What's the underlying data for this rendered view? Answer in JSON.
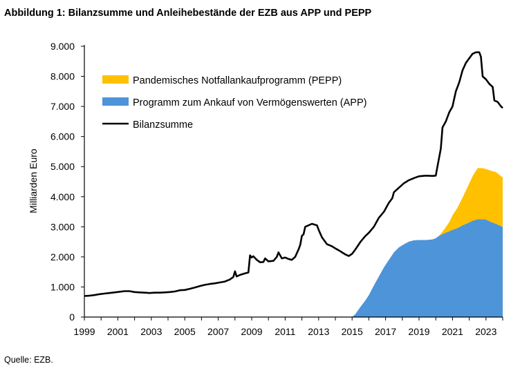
{
  "figure": {
    "title": "Abbildung 1: Bilanzsumme und Anleihebestände der EZB aus APP und PEPP",
    "source": "Quelle: EZB."
  },
  "chart_data": {
    "type": "area",
    "ylabel": "Milliarden Euro",
    "xlabel": "",
    "xlim": [
      1999,
      2024
    ],
    "ylim": [
      0,
      9000
    ],
    "y_ticks": [
      "0",
      "1.000",
      "2.000",
      "3.000",
      "4.000",
      "5.000",
      "6.000",
      "7.000",
      "8.000",
      "9.000"
    ],
    "y_tick_values": [
      0,
      1000,
      2000,
      3000,
      4000,
      5000,
      6000,
      7000,
      8000,
      9000
    ],
    "x_ticks": [
      "1999",
      "2001",
      "2003",
      "2005",
      "2007",
      "2009",
      "2011",
      "2013",
      "2015",
      "2017",
      "2019",
      "2021",
      "2023"
    ],
    "x_tick_values": [
      1999,
      2001,
      2003,
      2005,
      2007,
      2009,
      2011,
      2013,
      2015,
      2017,
      2019,
      2021,
      2023
    ],
    "legend_position": "top-left",
    "grid": false,
    "series": [
      {
        "name": "Pandemisches Notfallankaufprogramm (PEPP)",
        "kind": "stacked-area",
        "color": "#FFC000",
        "points": [
          [
            2020.2,
            0
          ],
          [
            2020.5,
            130
          ],
          [
            2020.8,
            300
          ],
          [
            2021.0,
            480
          ],
          [
            2021.3,
            680
          ],
          [
            2021.6,
            920
          ],
          [
            2021.9,
            1200
          ],
          [
            2022.2,
            1480
          ],
          [
            2022.5,
            1700
          ],
          [
            2022.8,
            1700
          ],
          [
            2023.0,
            1680
          ],
          [
            2023.3,
            1700
          ],
          [
            2023.6,
            1720
          ],
          [
            2023.9,
            1660
          ],
          [
            2024.0,
            1650
          ]
        ]
      },
      {
        "name": "Programm zum Ankauf von Vermögenswerten (APP)",
        "kind": "area",
        "color": "#4E94D8",
        "points": [
          [
            2015.0,
            0
          ],
          [
            2015.2,
            100
          ],
          [
            2015.5,
            340
          ],
          [
            2015.8,
            560
          ],
          [
            2016.0,
            730
          ],
          [
            2016.3,
            1050
          ],
          [
            2016.6,
            1350
          ],
          [
            2016.9,
            1650
          ],
          [
            2017.2,
            1900
          ],
          [
            2017.5,
            2150
          ],
          [
            2017.8,
            2320
          ],
          [
            2018.1,
            2420
          ],
          [
            2018.4,
            2510
          ],
          [
            2018.7,
            2550
          ],
          [
            2019.0,
            2560
          ],
          [
            2019.4,
            2560
          ],
          [
            2019.8,
            2580
          ],
          [
            2020.0,
            2620
          ],
          [
            2020.2,
            2700
          ],
          [
            2020.5,
            2780
          ],
          [
            2020.8,
            2850
          ],
          [
            2021.0,
            2900
          ],
          [
            2021.3,
            2960
          ],
          [
            2021.6,
            3050
          ],
          [
            2021.9,
            3120
          ],
          [
            2022.2,
            3200
          ],
          [
            2022.5,
            3250
          ],
          [
            2022.8,
            3250
          ],
          [
            2023.0,
            3240
          ],
          [
            2023.3,
            3160
          ],
          [
            2023.6,
            3100
          ],
          [
            2023.9,
            3020
          ],
          [
            2024.0,
            3000
          ]
        ]
      },
      {
        "name": "Bilanzsumme",
        "kind": "line",
        "color": "#000000",
        "points": [
          [
            1999.0,
            700
          ],
          [
            1999.3,
            710
          ],
          [
            1999.6,
            730
          ],
          [
            1999.9,
            760
          ],
          [
            2000.2,
            780
          ],
          [
            2000.5,
            800
          ],
          [
            2000.8,
            820
          ],
          [
            2001.1,
            840
          ],
          [
            2001.4,
            860
          ],
          [
            2001.7,
            860
          ],
          [
            2002.0,
            830
          ],
          [
            2002.3,
            820
          ],
          [
            2002.6,
            810
          ],
          [
            2002.9,
            800
          ],
          [
            2003.2,
            810
          ],
          [
            2003.5,
            810
          ],
          [
            2003.8,
            820
          ],
          [
            2004.1,
            830
          ],
          [
            2004.4,
            850
          ],
          [
            2004.7,
            890
          ],
          [
            2005.0,
            900
          ],
          [
            2005.3,
            940
          ],
          [
            2005.6,
            980
          ],
          [
            2005.9,
            1030
          ],
          [
            2006.2,
            1070
          ],
          [
            2006.5,
            1100
          ],
          [
            2006.8,
            1120
          ],
          [
            2007.1,
            1150
          ],
          [
            2007.4,
            1180
          ],
          [
            2007.7,
            1250
          ],
          [
            2007.9,
            1330
          ],
          [
            2008.0,
            1520
          ],
          [
            2008.1,
            1350
          ],
          [
            2008.3,
            1400
          ],
          [
            2008.6,
            1450
          ],
          [
            2008.8,
            1480
          ],
          [
            2008.9,
            2050
          ],
          [
            2009.0,
            1980
          ],
          [
            2009.1,
            2020
          ],
          [
            2009.3,
            1900
          ],
          [
            2009.5,
            1820
          ],
          [
            2009.7,
            1830
          ],
          [
            2009.8,
            1950
          ],
          [
            2010.0,
            1850
          ],
          [
            2010.3,
            1870
          ],
          [
            2010.5,
            2000
          ],
          [
            2010.6,
            2150
          ],
          [
            2010.8,
            1950
          ],
          [
            2011.0,
            1980
          ],
          [
            2011.2,
            1930
          ],
          [
            2011.4,
            1900
          ],
          [
            2011.6,
            2000
          ],
          [
            2011.8,
            2250
          ],
          [
            2011.9,
            2400
          ],
          [
            2012.0,
            2700
          ],
          [
            2012.1,
            2750
          ],
          [
            2012.2,
            3000
          ],
          [
            2012.4,
            3050
          ],
          [
            2012.6,
            3100
          ],
          [
            2012.9,
            3050
          ],
          [
            2013.0,
            2900
          ],
          [
            2013.2,
            2650
          ],
          [
            2013.5,
            2420
          ],
          [
            2013.8,
            2350
          ],
          [
            2014.0,
            2280
          ],
          [
            2014.2,
            2220
          ],
          [
            2014.4,
            2150
          ],
          [
            2014.6,
            2080
          ],
          [
            2014.8,
            2030
          ],
          [
            2015.0,
            2100
          ],
          [
            2015.2,
            2250
          ],
          [
            2015.5,
            2500
          ],
          [
            2015.8,
            2700
          ],
          [
            2016.0,
            2800
          ],
          [
            2016.3,
            3000
          ],
          [
            2016.6,
            3300
          ],
          [
            2016.9,
            3500
          ],
          [
            2017.2,
            3800
          ],
          [
            2017.4,
            3950
          ],
          [
            2017.5,
            4150
          ],
          [
            2017.8,
            4300
          ],
          [
            2018.1,
            4450
          ],
          [
            2018.4,
            4550
          ],
          [
            2018.7,
            4620
          ],
          [
            2019.0,
            4680
          ],
          [
            2019.4,
            4700
          ],
          [
            2019.8,
            4690
          ],
          [
            2020.0,
            4700
          ],
          [
            2020.1,
            5000
          ],
          [
            2020.3,
            5600
          ],
          [
            2020.4,
            6300
          ],
          [
            2020.6,
            6500
          ],
          [
            2020.8,
            6800
          ],
          [
            2021.0,
            7000
          ],
          [
            2021.2,
            7500
          ],
          [
            2021.4,
            7800
          ],
          [
            2021.6,
            8200
          ],
          [
            2021.8,
            8450
          ],
          [
            2022.0,
            8600
          ],
          [
            2022.2,
            8750
          ],
          [
            2022.4,
            8800
          ],
          [
            2022.6,
            8800
          ],
          [
            2022.7,
            8650
          ],
          [
            2022.8,
            8000
          ],
          [
            2023.0,
            7900
          ],
          [
            2023.2,
            7750
          ],
          [
            2023.4,
            7650
          ],
          [
            2023.5,
            7200
          ],
          [
            2023.7,
            7150
          ],
          [
            2023.9,
            7000
          ],
          [
            2024.0,
            6950
          ]
        ]
      }
    ]
  }
}
